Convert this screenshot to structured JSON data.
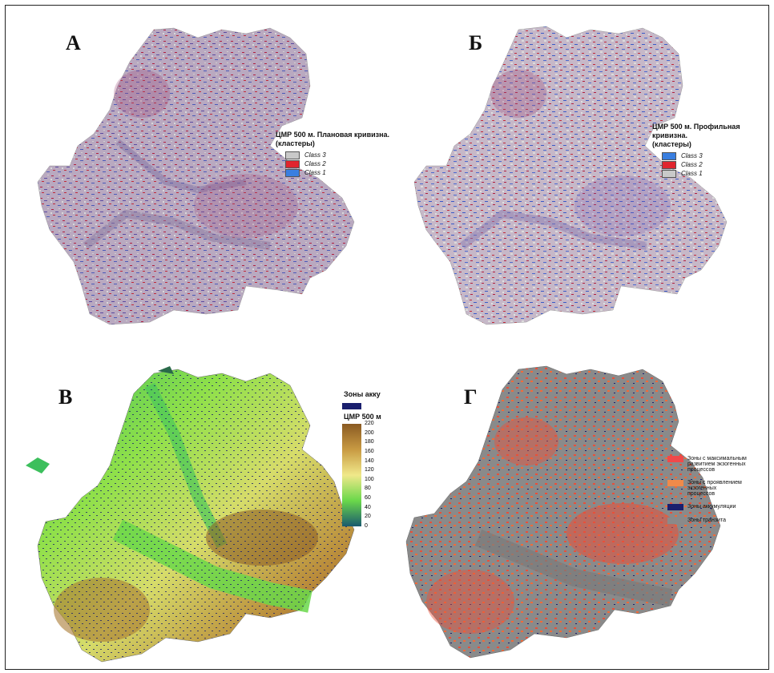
{
  "panels": {
    "A": {
      "letter": "А",
      "legend_title_line1": "ЦМР 500 м. Плановая кривизна.",
      "legend_title_line2": "(кластеры)",
      "classes": [
        {
          "label": "Class 3",
          "color": "#c9c9c9"
        },
        {
          "label": "Class 2",
          "color": "#e0252e"
        },
        {
          "label": "Class 1",
          "color": "#3a7fe0"
        }
      ]
    },
    "B": {
      "letter": "Б",
      "legend_title_line1": "ЦМР 500 м. Профильная кривизна.",
      "legend_title_line2": "(кластеры)",
      "classes": [
        {
          "label": "Class 3",
          "color": "#3a7fe0"
        },
        {
          "label": "Class 2",
          "color": "#e0252e"
        },
        {
          "label": "Class 1",
          "color": "#c9c9c9"
        }
      ]
    },
    "V": {
      "letter": "В",
      "zones_label": "Зоны акку",
      "zones_color": "#1a1f6e",
      "dem_label": "ЦМР 500 м",
      "ticks": [
        "220",
        "200",
        "180",
        "160",
        "140",
        "120",
        "100",
        "80",
        "60",
        "40",
        "20",
        "0"
      ]
    },
    "G": {
      "letter": "Г",
      "legend": [
        {
          "label_line1": "Зоны с максимальным",
          "label_line2": "развитием экзогенных процессов",
          "color": "#f0494a"
        },
        {
          "label_line1": "Зоны с проявлением экзогенных",
          "label_line2": "процессов",
          "color": "#f08a4a"
        },
        {
          "label_line1": "Зоны аккумуляции",
          "label_line2": "",
          "color": "#1a1f6e"
        },
        {
          "label_line1": "Зоны транзита",
          "label_line2": "",
          "color": "#8a8a8a"
        }
      ]
    }
  }
}
